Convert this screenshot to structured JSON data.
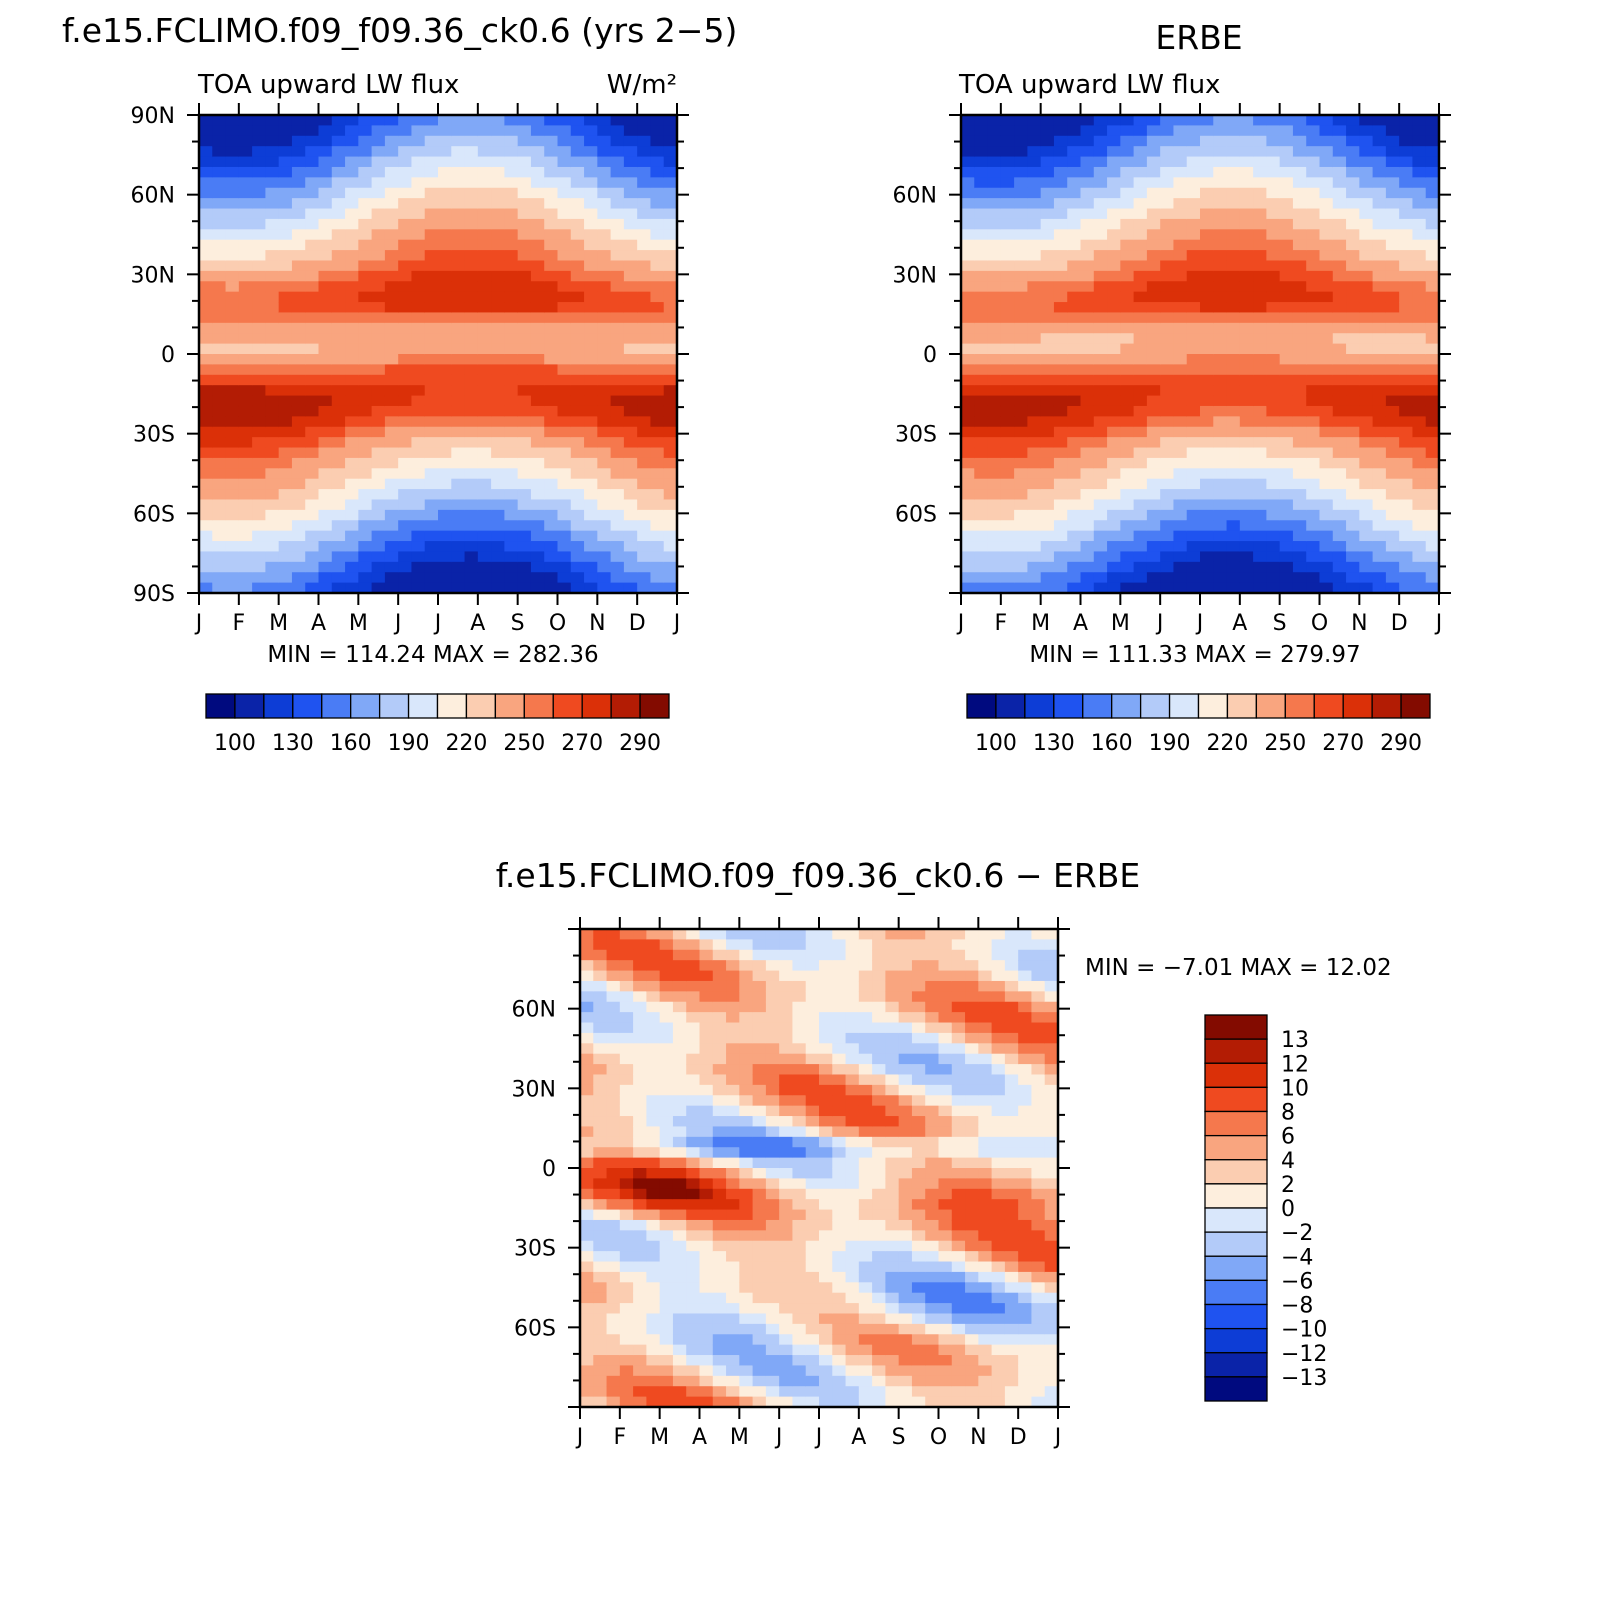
{
  "months": [
    "J",
    "F",
    "M",
    "A",
    "M",
    "J",
    "J",
    "A",
    "S",
    "O",
    "N",
    "D",
    "J"
  ],
  "colors": {
    "abs": [
      "#000a7f",
      "#0a23a8",
      "#0d3dd6",
      "#1f53f0",
      "#4a7cf5",
      "#80a8f7",
      "#b3cbf9",
      "#d9e7fb",
      "#fdeedd",
      "#fbcdb1",
      "#f9a57f",
      "#f5784d",
      "#ef4a20",
      "#db3008",
      "#b31c04",
      "#830b00"
    ],
    "diff": [
      "#000a7f",
      "#0a23a8",
      "#0d3dd6",
      "#1f53f0",
      "#4a7cf5",
      "#80a8f7",
      "#b3cbf9",
      "#d9e7fb",
      "#fdeedd",
      "#fbcdb1",
      "#f9a57f",
      "#f5784d",
      "#ef4a20",
      "#db3008",
      "#b31c04",
      "#830b00"
    ]
  },
  "chart_data": [
    {
      "type": "heatmap",
      "title": "f.e15.FCLIMO.f09_f09.36_ck0.6 (yrs 2−5)",
      "left_string": "TOA upward LW flux",
      "right_string": "W/m²",
      "x_ticks": [
        "J",
        "F",
        "M",
        "A",
        "M",
        "J",
        "J",
        "A",
        "S",
        "O",
        "N",
        "D",
        "J"
      ],
      "y_ticks": [
        "90N",
        "60N",
        "30N",
        "0",
        "30S",
        "60S",
        "90S"
      ],
      "ylim": [
        -90,
        90
      ],
      "colorbar_labels": [
        "100",
        "130",
        "160",
        "190",
        "220",
        "250",
        "270",
        "290"
      ],
      "levels": [
        100,
        115,
        130,
        145,
        160,
        175,
        190,
        205,
        220,
        235,
        250,
        260,
        270,
        280,
        290
      ],
      "min_text": "MIN =  114.24  MAX =  282.36",
      "min": 114.24,
      "max": 282.36
    },
    {
      "type": "heatmap",
      "title": "ERBE",
      "left_string": "TOA upward LW flux",
      "right_string": "",
      "x_ticks": [
        "J",
        "F",
        "M",
        "A",
        "M",
        "J",
        "J",
        "A",
        "S",
        "O",
        "N",
        "D",
        "J"
      ],
      "y_ticks": [
        "60N",
        "30N",
        "0",
        "30S",
        "60S"
      ],
      "ylim": [
        -90,
        90
      ],
      "colorbar_labels": [
        "100",
        "130",
        "160",
        "190",
        "220",
        "250",
        "270",
        "290"
      ],
      "levels": [
        100,
        115,
        130,
        145,
        160,
        175,
        190,
        205,
        220,
        235,
        250,
        260,
        270,
        280,
        290
      ],
      "min_text": "MIN =  111.33  MAX =  279.97",
      "min": 111.33,
      "max": 279.97
    },
    {
      "type": "heatmap",
      "title": "f.e15.FCLIMO.f09_f09.36_ck0.6 − ERBE",
      "x_ticks": [
        "J",
        "F",
        "M",
        "A",
        "M",
        "J",
        "J",
        "A",
        "S",
        "O",
        "N",
        "D",
        "J"
      ],
      "y_ticks": [
        "60N",
        "30N",
        "0",
        "30S",
        "60S"
      ],
      "ylim": [
        -90,
        90
      ],
      "min_text": "MIN =   −7.01  MAX =   12.02",
      "min": -7.01,
      "max": 12.02,
      "levels": [
        -13,
        -12,
        -10,
        -8,
        -6,
        -4,
        -2,
        0,
        2,
        4,
        6,
        8,
        10,
        12,
        13
      ],
      "colorbar_labels": [
        "13",
        "12",
        "10",
        "8",
        "6",
        "4",
        "2",
        "0",
        "−2",
        "−4",
        "−6",
        "−8",
        "−10",
        "−12",
        "−13"
      ]
    }
  ]
}
